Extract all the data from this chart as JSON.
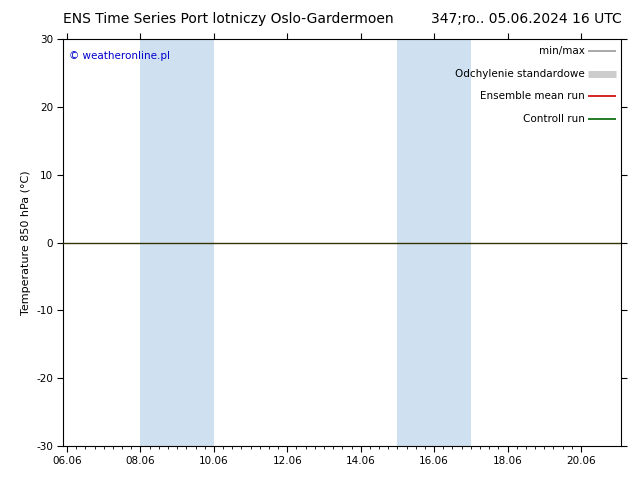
{
  "title_left": "ENS Time Series Port lotniczy Oslo-Gardermoen",
  "title_right": "347;ro.. 05.06.2024 16 UTC",
  "ylabel": "Temperature 850 hPa (°C)",
  "ylim": [
    -30,
    30
  ],
  "yticks": [
    -30,
    -20,
    -10,
    0,
    10,
    20,
    30
  ],
  "xlabel_dates": [
    "06.06",
    "08.06",
    "10.06",
    "12.06",
    "14.06",
    "16.06",
    "18.06",
    "20.06"
  ],
  "x_tick_positions": [
    0,
    2,
    4,
    6,
    8,
    10,
    12,
    14
  ],
  "xlim_start": -0.1,
  "xlim_end": 15.1,
  "shaded_bands": [
    {
      "x_start": 2,
      "x_end": 4,
      "color": "#cfe0f0"
    },
    {
      "x_start": 9,
      "x_end": 11,
      "color": "#cfe0f0"
    }
  ],
  "watermark": "© weatheronline.pl",
  "legend_items": [
    {
      "label": "min/max",
      "color": "#999999",
      "lw": 1.2
    },
    {
      "label": "Odchylenie standardowe",
      "color": "#cccccc",
      "lw": 5
    },
    {
      "label": "Ensemble mean run",
      "color": "#cc0000",
      "lw": 1.2
    },
    {
      "label": "Controll run",
      "color": "#006600",
      "lw": 1.2
    }
  ],
  "zero_line_color": "#333300",
  "background_color": "#ffffff",
  "plot_bg_color": "#ffffff",
  "border_color": "#aaaaaa",
  "title_fontsize": 10,
  "tick_fontsize": 7.5,
  "ylabel_fontsize": 8,
  "watermark_color": "#0000cc",
  "watermark_fontsize": 7.5,
  "legend_fontsize": 7.5
}
